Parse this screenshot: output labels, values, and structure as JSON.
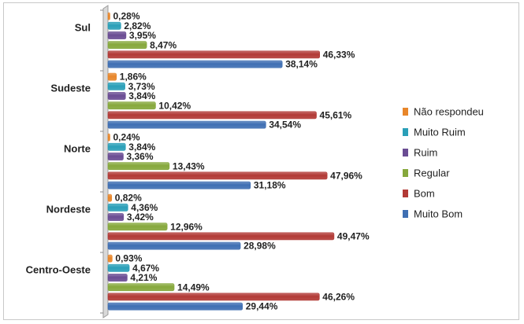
{
  "chart_data": {
    "type": "bar",
    "orientation": "horizontal",
    "categories": [
      "Sul",
      "Sudeste",
      "Norte",
      "Nordeste",
      "Centro-Oeste"
    ],
    "series": [
      {
        "name": "Não respondeu",
        "color": "#e8862a",
        "values": [
          0.28,
          1.86,
          0.24,
          0.82,
          0.93
        ],
        "labels": [
          "0,28%",
          "1,86%",
          "0,24%",
          "0,82%",
          "0,93%"
        ]
      },
      {
        "name": "Muito Ruim",
        "color": "#2a9fb8",
        "values": [
          2.82,
          3.73,
          3.84,
          4.36,
          4.67
        ],
        "labels": [
          "2,82%",
          "3,73%",
          "3,84%",
          "4,36%",
          "4,67%"
        ]
      },
      {
        "name": "Ruim",
        "color": "#6a4c93",
        "values": [
          3.95,
          3.84,
          3.36,
          3.42,
          4.21
        ],
        "labels": [
          "3,95%",
          "3,84%",
          "3,36%",
          "3,42%",
          "4,21%"
        ]
      },
      {
        "name": "Regular",
        "color": "#86a83c",
        "values": [
          8.47,
          10.42,
          13.43,
          12.96,
          14.49
        ],
        "labels": [
          "8,47%",
          "10,42%",
          "13,43%",
          "12,96%",
          "14,49%"
        ]
      },
      {
        "name": "Bom",
        "color": "#b23a36",
        "values": [
          46.33,
          45.61,
          47.96,
          49.47,
          46.26
        ],
        "labels": [
          "46,33%",
          "45,61%",
          "47,96%",
          "49,47%",
          "46,26%"
        ]
      },
      {
        "name": "Muito Bom",
        "color": "#3f6fb3",
        "values": [
          38.14,
          34.54,
          31.18,
          28.98,
          29.44
        ],
        "labels": [
          "38,14%",
          "34,54%",
          "31,18%",
          "28,98%",
          "29,44%"
        ]
      }
    ],
    "legend_order": [
      "Não respondeu",
      "Muito Ruim",
      "Ruim",
      "Regular",
      "Bom",
      "Muito Bom"
    ],
    "xlim": [
      0,
      60
    ],
    "legend_position": "right",
    "grid": false,
    "title": "",
    "xlabel": "",
    "ylabel": ""
  }
}
